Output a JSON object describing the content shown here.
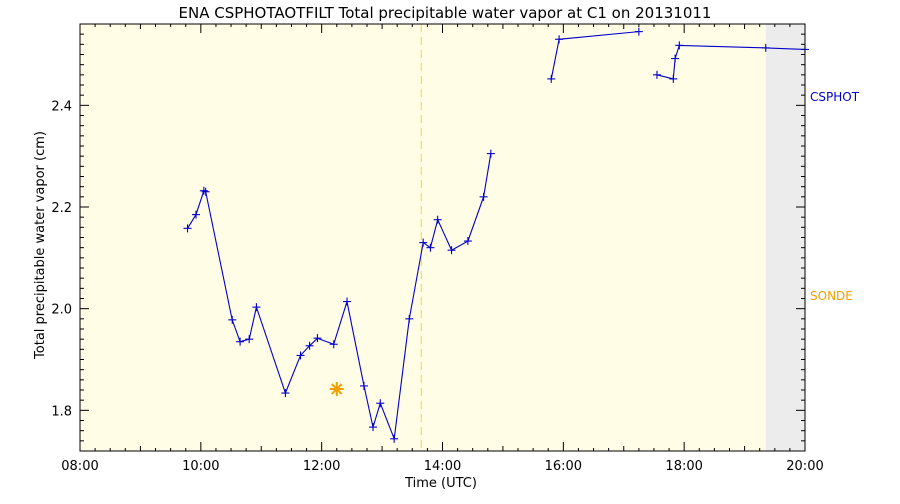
{
  "chart_data": {
    "type": "line",
    "title": "ENA CSPHOTAOTFILT Total precipitable water vapor at C1 on 20131011",
    "xlabel": "Time (UTC)",
    "ylabel": "Total precipitable water vapor (cm)",
    "xlim": [
      8.0,
      20.0
    ],
    "ylim": [
      1.72,
      2.56
    ],
    "x_ticks": [
      {
        "v": 8,
        "label": "08:00"
      },
      {
        "v": 10,
        "label": "10:00"
      },
      {
        "v": 12,
        "label": "12:00"
      },
      {
        "v": 14,
        "label": "14:00"
      },
      {
        "v": 16,
        "label": "16:00"
      },
      {
        "v": 18,
        "label": "18:00"
      },
      {
        "v": 20,
        "label": "20:00"
      }
    ],
    "y_ticks": [
      {
        "v": 1.8,
        "label": "1.8"
      },
      {
        "v": 2.0,
        "label": "2.0"
      },
      {
        "v": 2.2,
        "label": "2.2"
      },
      {
        "v": 2.4,
        "label": "2.4"
      }
    ],
    "background_bands": [
      {
        "x0": 8.0,
        "x1": 19.35,
        "color": "#fffde6"
      },
      {
        "x0": 19.35,
        "x1": 20.0,
        "color": "#ececec"
      }
    ],
    "vertical_lines": [
      {
        "x": 13.65,
        "color": "#f2e35a",
        "style": "dashed"
      }
    ],
    "legend": [
      {
        "label": "CSPHOT",
        "color": "#0000cc",
        "placement": "right"
      },
      {
        "label": "SONDE",
        "color": "#f0a000",
        "placement": "right"
      }
    ],
    "series": [
      {
        "name": "CSPHOT",
        "color": "#0000cc",
        "marker": "plus",
        "segments": [
          [
            [
              9.78,
              2.158
            ],
            [
              9.92,
              2.185
            ],
            [
              10.05,
              2.232
            ],
            [
              10.08,
              2.23
            ],
            [
              10.52,
              1.978
            ],
            [
              10.65,
              1.935
            ],
            [
              10.8,
              1.94
            ],
            [
              10.92,
              2.003
            ],
            [
              11.4,
              1.834
            ],
            [
              11.65,
              1.908
            ],
            [
              11.8,
              1.927
            ],
            [
              11.93,
              1.942
            ],
            [
              12.2,
              1.93
            ],
            [
              12.42,
              2.014
            ],
            [
              12.7,
              1.848
            ],
            [
              12.85,
              1.767
            ],
            [
              12.97,
              1.814
            ],
            [
              13.2,
              1.744
            ],
            [
              13.45,
              1.98
            ],
            [
              13.68,
              2.13
            ],
            [
              13.8,
              2.12
            ],
            [
              13.92,
              2.175
            ],
            [
              14.15,
              2.115
            ],
            [
              14.42,
              2.133
            ],
            [
              14.68,
              2.22
            ],
            [
              14.8,
              2.305
            ]
          ],
          [
            [
              15.8,
              2.452
            ],
            [
              15.93,
              2.53
            ],
            [
              17.25,
              2.545
            ]
          ],
          [
            [
              17.55,
              2.46
            ],
            [
              17.82,
              2.452
            ],
            [
              17.85,
              2.492
            ],
            [
              17.92,
              2.518
            ],
            [
              19.35,
              2.513
            ],
            [
              20.0,
              2.51
            ]
          ]
        ]
      },
      {
        "name": "SONDE",
        "color": "#f0a000",
        "marker": "asterisk",
        "segments": [
          [
            [
              12.25,
              1.842
            ]
          ]
        ]
      }
    ]
  }
}
